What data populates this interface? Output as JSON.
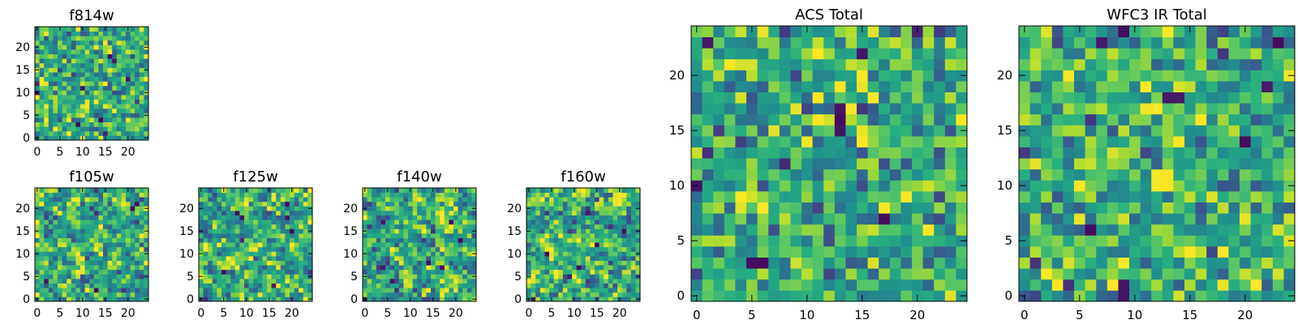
{
  "chart_data": [
    {
      "id": "f814w",
      "type": "heatmap",
      "title": "f814w",
      "grid_size": 25,
      "xlim": [
        0,
        24
      ],
      "ylim": [
        0,
        24
      ],
      "xticks": [
        0,
        5,
        10,
        15,
        20
      ],
      "yticks": [
        0,
        5,
        10,
        15,
        20
      ],
      "xtick_labels": [
        "0",
        "5",
        "10",
        "15",
        "20"
      ],
      "ytick_labels": [
        "0",
        "5",
        "10",
        "15",
        "20"
      ],
      "seed": 11,
      "smooth": 0,
      "colormap": "viridis",
      "outliers": [
        [
          16,
          18
        ],
        [
          17,
          17
        ],
        [
          20,
          13
        ],
        [
          14,
          4
        ],
        [
          10,
          11
        ],
        [
          0,
          10
        ],
        [
          9,
          3
        ]
      ]
    },
    {
      "id": "f105w",
      "type": "heatmap",
      "title": "f105w",
      "grid_size": 25,
      "xlim": [
        0,
        24
      ],
      "ylim": [
        0,
        24
      ],
      "xticks": [
        0,
        5,
        10,
        15,
        20
      ],
      "yticks": [
        0,
        5,
        10,
        15,
        20
      ],
      "xtick_labels": [
        "0",
        "5",
        "10",
        "15",
        "20"
      ],
      "ytick_labels": [
        "0",
        "5",
        "10",
        "15",
        "20"
      ],
      "seed": 23,
      "smooth": 1,
      "colormap": "viridis",
      "outliers": [
        [
          21,
          20
        ],
        [
          22,
          21
        ],
        [
          2,
          4
        ],
        [
          13,
          2
        ]
      ]
    },
    {
      "id": "f125w",
      "type": "heatmap",
      "title": "f125w",
      "grid_size": 25,
      "xlim": [
        0,
        24
      ],
      "ylim": [
        0,
        24
      ],
      "xticks": [
        0,
        5,
        10,
        15,
        20
      ],
      "yticks": [
        0,
        5,
        10,
        15,
        20
      ],
      "xtick_labels": [
        "0",
        "5",
        "10",
        "15",
        "20"
      ],
      "ytick_labels": [
        "0",
        "5",
        "10",
        "15",
        "20"
      ],
      "seed": 37,
      "smooth": 1,
      "colormap": "viridis",
      "outliers": [
        [
          8,
          19
        ],
        [
          9,
          18
        ],
        [
          19,
          21
        ],
        [
          5,
          6
        ],
        [
          20,
          15
        ],
        [
          16,
          3
        ]
      ]
    },
    {
      "id": "f140w",
      "type": "heatmap",
      "title": "f140w",
      "grid_size": 25,
      "xlim": [
        0,
        24
      ],
      "ylim": [
        0,
        24
      ],
      "xticks": [
        0,
        5,
        10,
        15,
        20
      ],
      "yticks": [
        0,
        5,
        10,
        15,
        20
      ],
      "xtick_labels": [
        "0",
        "5",
        "10",
        "15",
        "20"
      ],
      "ytick_labels": [
        "0",
        "5",
        "10",
        "15",
        "20"
      ],
      "seed": 53,
      "smooth": 1,
      "colormap": "viridis",
      "outliers": [
        [
          14,
          8
        ],
        [
          17,
          7
        ],
        [
          21,
          13
        ],
        [
          0,
          0
        ],
        [
          6,
          4
        ],
        [
          19,
          17
        ]
      ]
    },
    {
      "id": "f160w",
      "type": "heatmap",
      "title": "f160w",
      "grid_size": 25,
      "xlim": [
        0,
        24
      ],
      "ylim": [
        0,
        24
      ],
      "xticks": [
        0,
        5,
        10,
        15,
        20
      ],
      "yticks": [
        0,
        5,
        10,
        15,
        20
      ],
      "xtick_labels": [
        "0",
        "5",
        "10",
        "15",
        "20"
      ],
      "ytick_labels": [
        "0",
        "5",
        "10",
        "15",
        "20"
      ],
      "seed": 71,
      "smooth": 1,
      "colormap": "viridis",
      "outliers": [
        [
          1,
          0
        ],
        [
          11,
          7
        ],
        [
          9,
          5
        ],
        [
          21,
          15
        ],
        [
          15,
          12
        ],
        [
          4,
          10
        ]
      ]
    },
    {
      "id": "acs",
      "type": "heatmap",
      "title": "ACS Total",
      "grid_size": 25,
      "xlim": [
        0,
        24
      ],
      "ylim": [
        0,
        24
      ],
      "xticks": [
        0,
        5,
        10,
        15,
        20
      ],
      "yticks": [
        0,
        5,
        10,
        15,
        20
      ],
      "xtick_labels": [
        "0",
        "5",
        "10",
        "15",
        "20"
      ],
      "ytick_labels": [
        "0",
        "5",
        "10",
        "15",
        "20"
      ],
      "seed": 89,
      "smooth": 0,
      "colormap": "viridis",
      "outliers": [
        [
          1,
          23
        ],
        [
          15,
          22
        ],
        [
          13,
          17
        ],
        [
          13,
          16
        ],
        [
          13,
          15
        ],
        [
          0,
          10
        ],
        [
          17,
          7
        ],
        [
          5,
          3
        ],
        [
          6,
          3
        ]
      ]
    },
    {
      "id": "wfc3",
      "type": "heatmap",
      "title": "WFC3 IR Total",
      "grid_size": 25,
      "xlim": [
        0,
        24
      ],
      "ylim": [
        0,
        24
      ],
      "xticks": [
        0,
        5,
        10,
        15,
        20
      ],
      "yticks": [
        0,
        5,
        10,
        15,
        20
      ],
      "xtick_labels": [
        "0",
        "5",
        "10",
        "15",
        "20"
      ],
      "ytick_labels": [
        "0",
        "5",
        "10",
        "15",
        "20"
      ],
      "seed": 97,
      "smooth": 0,
      "colormap": "viridis",
      "outliers": [
        [
          9,
          24
        ],
        [
          7,
          23
        ],
        [
          23,
          23
        ],
        [
          22,
          19
        ],
        [
          14,
          18
        ],
        [
          13,
          18
        ],
        [
          20,
          14
        ],
        [
          6,
          6
        ],
        [
          9,
          0
        ],
        [
          9,
          1
        ]
      ],
      "bright": [
        [
          12,
          11
        ],
        [
          13,
          11
        ],
        [
          12,
          10
        ],
        [
          13,
          10
        ]
      ]
    }
  ]
}
